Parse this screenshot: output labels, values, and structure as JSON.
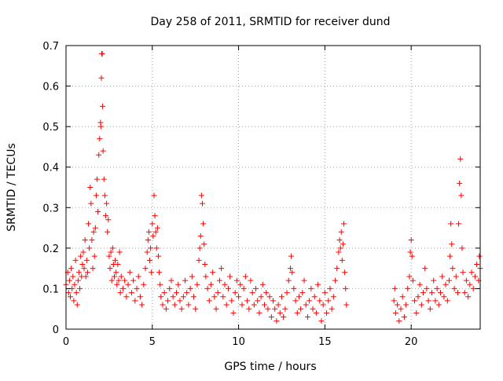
{
  "chart_data": {
    "type": "scatter",
    "title": "Day 258 of 2011, SRMTID for receiver dund",
    "xlabel": "GPS time / hours",
    "ylabel": "SRMTID / TECUs",
    "xlim": [
      0,
      24
    ],
    "ylim": [
      0,
      0.7
    ],
    "x_ticks": [
      0,
      5,
      10,
      15,
      20
    ],
    "x_tick_labels": [
      "0",
      "5",
      "10",
      "15",
      "20"
    ],
    "y_ticks": [
      0,
      0.1,
      0.2,
      0.3,
      0.4,
      0.5,
      0.6,
      0.7
    ],
    "y_tick_labels": [
      "0",
      "0.1",
      "0.2",
      "0.3",
      "0.4",
      "0.5",
      "0.6",
      "0.7"
    ],
    "grid": true,
    "marker": "+",
    "marker_color": "#ff0000",
    "series": [
      {
        "name": "SRMTID",
        "points": [
          [
            0.0,
            0.11
          ],
          [
            0.1,
            0.14
          ],
          [
            0.15,
            0.09
          ],
          [
            0.2,
            0.12
          ],
          [
            0.25,
            0.08
          ],
          [
            0.3,
            0.15
          ],
          [
            0.35,
            0.1
          ],
          [
            0.4,
            0.13
          ],
          [
            0.45,
            0.07
          ],
          [
            0.5,
            0.11
          ],
          [
            0.55,
            0.17
          ],
          [
            0.6,
            0.09
          ],
          [
            0.65,
            0.06
          ],
          [
            0.7,
            0.12
          ],
          [
            0.75,
            0.14
          ],
          [
            0.8,
            0.1
          ],
          [
            0.85,
            0.18
          ],
          [
            0.9,
            0.13
          ],
          [
            0.95,
            0.16
          ],
          [
            1.0,
            0.19
          ],
          [
            1.05,
            0.15
          ],
          [
            1.1,
            0.22
          ],
          [
            1.15,
            0.13
          ],
          [
            1.2,
            0.17
          ],
          [
            1.25,
            0.14
          ],
          [
            1.3,
            0.26
          ],
          [
            1.35,
            0.2
          ],
          [
            1.4,
            0.35
          ],
          [
            1.45,
            0.31
          ],
          [
            1.5,
            0.22
          ],
          [
            1.55,
            0.15
          ],
          [
            1.6,
            0.24
          ],
          [
            1.65,
            0.18
          ],
          [
            1.7,
            0.25
          ],
          [
            1.75,
            0.33
          ],
          [
            1.8,
            0.37
          ],
          [
            1.85,
            0.29
          ],
          [
            1.9,
            0.43
          ],
          [
            1.95,
            0.47
          ],
          [
            2.0,
            0.51
          ],
          [
            2.02,
            0.5
          ],
          [
            2.05,
            0.62
          ],
          [
            2.07,
            0.68
          ],
          [
            2.1,
            0.68
          ],
          [
            2.12,
            0.55
          ],
          [
            2.15,
            0.44
          ],
          [
            2.2,
            0.37
          ],
          [
            2.25,
            0.33
          ],
          [
            2.3,
            0.28
          ],
          [
            2.35,
            0.31
          ],
          [
            2.4,
            0.24
          ],
          [
            2.45,
            0.27
          ],
          [
            2.5,
            0.18
          ],
          [
            2.55,
            0.15
          ],
          [
            2.6,
            0.19
          ],
          [
            2.65,
            0.12
          ],
          [
            2.7,
            0.2
          ],
          [
            2.75,
            0.16
          ],
          [
            2.8,
            0.13
          ],
          [
            2.85,
            0.17
          ],
          [
            2.9,
            0.14
          ],
          [
            2.95,
            0.11
          ],
          [
            3.0,
            0.16
          ],
          [
            3.05,
            0.12
          ],
          [
            3.1,
            0.19
          ],
          [
            3.15,
            0.09
          ],
          [
            3.2,
            0.13
          ],
          [
            3.3,
            0.1
          ],
          [
            3.4,
            0.12
          ],
          [
            3.5,
            0.08
          ],
          [
            3.6,
            0.11
          ],
          [
            3.7,
            0.14
          ],
          [
            3.8,
            0.09
          ],
          [
            3.9,
            0.12
          ],
          [
            4.0,
            0.07
          ],
          [
            4.1,
            0.1
          ],
          [
            4.2,
            0.13
          ],
          [
            4.3,
            0.08
          ],
          [
            4.4,
            0.06
          ],
          [
            4.5,
            0.11
          ],
          [
            4.6,
            0.15
          ],
          [
            4.7,
            0.19
          ],
          [
            4.75,
            0.22
          ],
          [
            4.8,
            0.24
          ],
          [
            4.85,
            0.17
          ],
          [
            4.9,
            0.2
          ],
          [
            4.95,
            0.14
          ],
          [
            5.0,
            0.26
          ],
          [
            5.05,
            0.23
          ],
          [
            5.1,
            0.33
          ],
          [
            5.15,
            0.28
          ],
          [
            5.2,
            0.24
          ],
          [
            5.25,
            0.2
          ],
          [
            5.3,
            0.25
          ],
          [
            5.35,
            0.18
          ],
          [
            5.4,
            0.14
          ],
          [
            5.45,
            0.11
          ],
          [
            5.5,
            0.08
          ],
          [
            5.6,
            0.06
          ],
          [
            5.7,
            0.09
          ],
          [
            5.8,
            0.05
          ],
          [
            5.9,
            0.07
          ],
          [
            6.0,
            0.1
          ],
          [
            6.1,
            0.12
          ],
          [
            6.2,
            0.08
          ],
          [
            6.3,
            0.06
          ],
          [
            6.4,
            0.09
          ],
          [
            6.5,
            0.11
          ],
          [
            6.6,
            0.07
          ],
          [
            6.7,
            0.05
          ],
          [
            6.8,
            0.08
          ],
          [
            6.9,
            0.12
          ],
          [
            7.0,
            0.09
          ],
          [
            7.1,
            0.06
          ],
          [
            7.2,
            0.1
          ],
          [
            7.3,
            0.13
          ],
          [
            7.4,
            0.08
          ],
          [
            7.5,
            0.05
          ],
          [
            7.6,
            0.11
          ],
          [
            7.7,
            0.17
          ],
          [
            7.75,
            0.2
          ],
          [
            7.8,
            0.23
          ],
          [
            7.85,
            0.33
          ],
          [
            7.9,
            0.31
          ],
          [
            7.95,
            0.26
          ],
          [
            8.0,
            0.21
          ],
          [
            8.05,
            0.16
          ],
          [
            8.1,
            0.13
          ],
          [
            8.2,
            0.1
          ],
          [
            8.3,
            0.07
          ],
          [
            8.4,
            0.11
          ],
          [
            8.5,
            0.14
          ],
          [
            8.6,
            0.08
          ],
          [
            8.7,
            0.05
          ],
          [
            8.8,
            0.09
          ],
          [
            8.9,
            0.12
          ],
          [
            9.0,
            0.15
          ],
          [
            9.1,
            0.08
          ],
          [
            9.2,
            0.11
          ],
          [
            9.3,
            0.06
          ],
          [
            9.4,
            0.1
          ],
          [
            9.5,
            0.13
          ],
          [
            9.6,
            0.07
          ],
          [
            9.7,
            0.04
          ],
          [
            9.8,
            0.09
          ],
          [
            9.9,
            0.12
          ],
          [
            10.0,
            0.08
          ],
          [
            10.1,
            0.11
          ],
          [
            10.2,
            0.06
          ],
          [
            10.3,
            0.1
          ],
          [
            10.4,
            0.13
          ],
          [
            10.5,
            0.07
          ],
          [
            10.6,
            0.05
          ],
          [
            10.7,
            0.12
          ],
          [
            10.8,
            0.09
          ],
          [
            10.9,
            0.06
          ],
          [
            11.0,
            0.1
          ],
          [
            11.1,
            0.07
          ],
          [
            11.2,
            0.04
          ],
          [
            11.3,
            0.08
          ],
          [
            11.4,
            0.11
          ],
          [
            11.5,
            0.06
          ],
          [
            11.6,
            0.09
          ],
          [
            11.7,
            0.05
          ],
          [
            11.8,
            0.08
          ],
          [
            11.9,
            0.03
          ],
          [
            12.0,
            0.07
          ],
          [
            12.1,
            0.05
          ],
          [
            12.2,
            0.02
          ],
          [
            12.3,
            0.06
          ],
          [
            12.4,
            0.04
          ],
          [
            12.5,
            0.08
          ],
          [
            12.6,
            0.03
          ],
          [
            12.7,
            0.05
          ],
          [
            12.8,
            0.09
          ],
          [
            12.9,
            0.12
          ],
          [
            13.0,
            0.15
          ],
          [
            13.05,
            0.18
          ],
          [
            13.1,
            0.14
          ],
          [
            13.2,
            0.1
          ],
          [
            13.3,
            0.07
          ],
          [
            13.4,
            0.04
          ],
          [
            13.5,
            0.08
          ],
          [
            13.6,
            0.05
          ],
          [
            13.7,
            0.09
          ],
          [
            13.8,
            0.12
          ],
          [
            13.9,
            0.06
          ],
          [
            14.0,
            0.03
          ],
          [
            14.1,
            0.07
          ],
          [
            14.2,
            0.1
          ],
          [
            14.3,
            0.05
          ],
          [
            14.4,
            0.08
          ],
          [
            14.5,
            0.04
          ],
          [
            14.6,
            0.11
          ],
          [
            14.7,
            0.07
          ],
          [
            14.8,
            0.02
          ],
          [
            14.9,
            0.06
          ],
          [
            15.0,
            0.09
          ],
          [
            15.1,
            0.04
          ],
          [
            15.2,
            0.07
          ],
          [
            15.3,
            0.1
          ],
          [
            15.4,
            0.05
          ],
          [
            15.5,
            0.08
          ],
          [
            15.6,
            0.12
          ],
          [
            15.7,
            0.15
          ],
          [
            15.8,
            0.19
          ],
          [
            15.85,
            0.22
          ],
          [
            15.9,
            0.2
          ],
          [
            15.95,
            0.24
          ],
          [
            16.0,
            0.17
          ],
          [
            16.05,
            0.21
          ],
          [
            16.1,
            0.26
          ],
          [
            16.15,
            0.14
          ],
          [
            16.2,
            0.1
          ],
          [
            16.25,
            0.06
          ],
          [
            19.0,
            0.07
          ],
          [
            19.05,
            0.1
          ],
          [
            19.1,
            0.04
          ],
          [
            19.2,
            0.06
          ],
          [
            19.3,
            0.02
          ],
          [
            19.4,
            0.05
          ],
          [
            19.5,
            0.08
          ],
          [
            19.6,
            0.03
          ],
          [
            19.7,
            0.06
          ],
          [
            19.8,
            0.1
          ],
          [
            19.9,
            0.13
          ],
          [
            19.95,
            0.19
          ],
          [
            20.0,
            0.22
          ],
          [
            20.05,
            0.18
          ],
          [
            20.1,
            0.12
          ],
          [
            20.2,
            0.07
          ],
          [
            20.3,
            0.04
          ],
          [
            20.4,
            0.08
          ],
          [
            20.5,
            0.11
          ],
          [
            20.6,
            0.06
          ],
          [
            20.7,
            0.09
          ],
          [
            20.8,
            0.15
          ],
          [
            20.9,
            0.1
          ],
          [
            21.0,
            0.07
          ],
          [
            21.1,
            0.05
          ],
          [
            21.2,
            0.09
          ],
          [
            21.3,
            0.12
          ],
          [
            21.4,
            0.07
          ],
          [
            21.5,
            0.1
          ],
          [
            21.6,
            0.06
          ],
          [
            21.7,
            0.09
          ],
          [
            21.8,
            0.13
          ],
          [
            21.9,
            0.08
          ],
          [
            22.0,
            0.11
          ],
          [
            22.1,
            0.07
          ],
          [
            22.2,
            0.12
          ],
          [
            22.25,
            0.18
          ],
          [
            22.3,
            0.26
          ],
          [
            22.35,
            0.21
          ],
          [
            22.4,
            0.15
          ],
          [
            22.5,
            0.1
          ],
          [
            22.6,
            0.13
          ],
          [
            22.7,
            0.09
          ],
          [
            22.75,
            0.26
          ],
          [
            22.8,
            0.36
          ],
          [
            22.85,
            0.42
          ],
          [
            22.9,
            0.33
          ],
          [
            22.95,
            0.2
          ],
          [
            23.0,
            0.14
          ],
          [
            23.1,
            0.09
          ],
          [
            23.2,
            0.12
          ],
          [
            23.3,
            0.08
          ],
          [
            23.4,
            0.11
          ],
          [
            23.5,
            0.14
          ],
          [
            23.6,
            0.1
          ],
          [
            23.7,
            0.13
          ],
          [
            23.8,
            0.16
          ],
          [
            23.9,
            0.12
          ],
          [
            23.95,
            0.18
          ],
          [
            24.0,
            0.15
          ]
        ]
      }
    ]
  }
}
